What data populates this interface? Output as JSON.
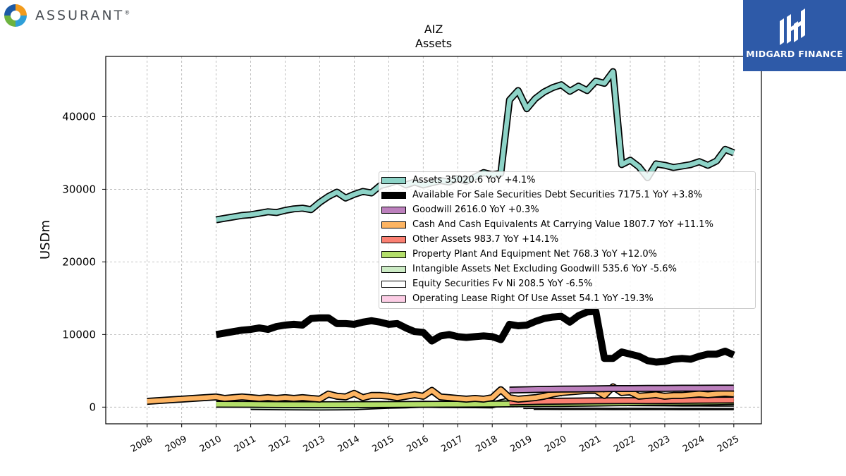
{
  "branding": {
    "company_name": "ASSURANT",
    "company_mark": "®",
    "publisher_name": "MIDGARD FINANCE",
    "publisher_color": "#2e5aa8"
  },
  "chart_data": {
    "type": "area",
    "title": "AIZ",
    "subtitle": "Assets",
    "ylabel": "USDm",
    "xlabel": "",
    "ylim": [
      -2300,
      48300
    ],
    "xlim": [
      2006.8,
      2025.8
    ],
    "x_ticks": [
      "2008",
      "2009",
      "2010",
      "2011",
      "2012",
      "2013",
      "2014",
      "2015",
      "2016",
      "2017",
      "2018",
      "2019",
      "2020",
      "2021",
      "2022",
      "2023",
      "2024",
      "2025"
    ],
    "y_ticks": [
      0,
      10000,
      20000,
      30000,
      40000
    ],
    "grid": true,
    "legend_position": "center-right",
    "series": [
      {
        "name": "Assets",
        "legend_label": "Assets  35020.6 YoY +4.1%",
        "color": "#8dd3c7",
        "x": [
          2010,
          2010.25,
          2010.5,
          2010.75,
          2011,
          2011.25,
          2011.5,
          2011.75,
          2012,
          2012.25,
          2012.5,
          2012.75,
          2013,
          2013.25,
          2013.5,
          2013.75,
          2014,
          2014.25,
          2014.5,
          2014.75,
          2015,
          2015.25,
          2015.5,
          2015.75,
          2016,
          2016.25,
          2016.5,
          2016.75,
          2017,
          2017.25,
          2017.5,
          2017.75,
          2018,
          2018.25,
          2018.5,
          2018.75,
          2019,
          2019.25,
          2019.5,
          2019.75,
          2020,
          2020.25,
          2020.5,
          2020.75,
          2021,
          2021.25,
          2021.5,
          2021.75,
          2022,
          2022.25,
          2022.5,
          2022.75,
          2023,
          2023.25,
          2023.5,
          2023.75,
          2024,
          2024.25,
          2024.5,
          2024.75,
          2025
        ],
        "values": [
          25800,
          26000,
          26200,
          26400,
          26500,
          26700,
          26900,
          26800,
          27100,
          27300,
          27400,
          27200,
          28200,
          29000,
          29600,
          28800,
          29300,
          29700,
          29500,
          30500,
          30800,
          31200,
          30600,
          31000,
          30600,
          30900,
          31200,
          31000,
          31500,
          31100,
          31700,
          32300,
          32000,
          32200,
          42300,
          43600,
          41100,
          42500,
          43400,
          44000,
          44400,
          43500,
          44200,
          43600,
          44900,
          44600,
          46200,
          33400,
          34000,
          33100,
          31600,
          33500,
          33300,
          33000,
          33200,
          33400,
          33800,
          33300,
          33900,
          35500,
          35020.6
        ]
      },
      {
        "name": "Available For Sale Securities Debt Securities",
        "legend_label": "Available For Sale Securities Debt Securities  7175.1 YoY +3.8%",
        "color": "#000000",
        "x": [
          2010,
          2010.25,
          2010.5,
          2010.75,
          2011,
          2011.25,
          2011.5,
          2011.75,
          2012,
          2012.25,
          2012.5,
          2012.75,
          2013,
          2013.25,
          2013.5,
          2013.75,
          2014,
          2014.25,
          2014.5,
          2014.75,
          2015,
          2015.25,
          2015.5,
          2015.75,
          2016,
          2016.25,
          2016.5,
          2016.75,
          2017,
          2017.25,
          2017.5,
          2017.75,
          2018,
          2018.25,
          2018.5,
          2018.75,
          2019,
          2019.25,
          2019.5,
          2019.75,
          2020,
          2020.25,
          2020.5,
          2020.75,
          2021,
          2021.25,
          2021.5,
          2021.75,
          2022,
          2022.25,
          2022.5,
          2022.75,
          2023,
          2023.25,
          2023.5,
          2023.75,
          2024,
          2024.25,
          2024.5,
          2024.75,
          2025
        ],
        "values": [
          10000,
          10200,
          10400,
          10600,
          10700,
          10900,
          10700,
          11100,
          11300,
          11400,
          11300,
          12200,
          12300,
          12300,
          11500,
          11500,
          11400,
          11700,
          11900,
          11700,
          11400,
          11500,
          10900,
          10400,
          10300,
          9100,
          9800,
          10000,
          9700,
          9600,
          9700,
          9800,
          9700,
          9300,
          11400,
          11200,
          11300,
          11800,
          12200,
          12400,
          12500,
          11700,
          12600,
          13100,
          13200,
          6700,
          6700,
          7600,
          7300,
          7000,
          6400,
          6200,
          6300,
          6600,
          6700,
          6600,
          7000,
          7300,
          7300,
          7700,
          7175.1
        ]
      },
      {
        "name": "Goodwill",
        "legend_label": "Goodwill  2616.0 YoY +0.3%",
        "color": "#bc80bd",
        "x": [
          2018.5,
          2019,
          2019.5,
          2020,
          2020.5,
          2021,
          2021.5,
          2022,
          2022.5,
          2023,
          2023.5,
          2024,
          2024.5,
          2025
        ],
        "values": [
          2350,
          2400,
          2450,
          2480,
          2500,
          2520,
          2560,
          2560,
          2580,
          2590,
          2600,
          2605,
          2610,
          2616.0
        ]
      },
      {
        "name": "Cash And Cash Equivalents At Carrying Value",
        "legend_label": "Cash And Cash Equivalents At Carrying Value  1807.7 YoY +11.1%",
        "color": "#fdb462",
        "x": [
          2008,
          2009,
          2010,
          2010.25,
          2010.5,
          2010.75,
          2011,
          2011.25,
          2011.5,
          2011.75,
          2012,
          2012.25,
          2012.5,
          2012.75,
          2013,
          2013.25,
          2013.5,
          2013.75,
          2014,
          2014.25,
          2014.5,
          2014.75,
          2015,
          2015.25,
          2015.5,
          2015.75,
          2016,
          2016.25,
          2016.5,
          2016.75,
          2017,
          2017.25,
          2017.5,
          2017.75,
          2018,
          2018.25,
          2018.5,
          2018.75,
          2019,
          2019.25,
          2019.5,
          2019.75,
          2020,
          2020.25,
          2020.5,
          2020.75,
          2021,
          2021.25,
          2021.5,
          2021.75,
          2022,
          2022.25,
          2022.5,
          2022.75,
          2023,
          2023.25,
          2023.5,
          2023.75,
          2024,
          2024.25,
          2024.5,
          2024.75,
          2025
        ],
        "values": [
          800,
          1100,
          1400,
          1200,
          1300,
          1400,
          1300,
          1200,
          1300,
          1200,
          1300,
          1200,
          1300,
          1200,
          1100,
          1800,
          1500,
          1400,
          1900,
          1300,
          1600,
          1600,
          1500,
          1300,
          1500,
          1700,
          1500,
          2300,
          1400,
          1300,
          1200,
          1100,
          1200,
          1100,
          1300,
          2400,
          1300,
          1100,
          1200,
          1300,
          1500,
          1800,
          2000,
          2100,
          2200,
          2300,
          2300,
          1600,
          2800,
          2000,
          2100,
          1500,
          1600,
          1700,
          1500,
          1600,
          1600,
          1700,
          1800,
          1700,
          1800,
          1900,
          1807.7
        ]
      },
      {
        "name": "Other Assets",
        "legend_label": "Other Assets  983.7 YoY +14.1%",
        "color": "#fb8072",
        "x": [
          2018.5,
          2019,
          2019.5,
          2020,
          2020.5,
          2021,
          2021.5,
          2022,
          2022.5,
          2023,
          2023.5,
          2024,
          2024.5,
          2025
        ],
        "values": [
          700,
          750,
          800,
          820,
          850,
          870,
          880,
          900,
          880,
          900,
          920,
          950,
          960,
          983.7
        ]
      },
      {
        "name": "Property Plant And Equipment Net",
        "legend_label": "Property Plant And Equipment Net  768.3 YoY +12.0%",
        "color": "#b3de69",
        "x": [
          2010,
          2011,
          2011.5,
          2012,
          2013,
          2014,
          2015,
          2016,
          2017,
          2018,
          2018.5,
          2019,
          2019.5,
          2020,
          2020.5,
          2021,
          2021.5,
          2022,
          2022.5,
          2023,
          2023.5,
          2024,
          2024.5,
          2025
        ],
        "values": [
          400,
          380,
          360,
          340,
          330,
          350,
          360,
          380,
          400,
          420,
          450,
          470,
          490,
          510,
          530,
          560,
          590,
          620,
          650,
          670,
          690,
          700,
          720,
          768.3
        ]
      },
      {
        "name": "Intangible Assets Net Excluding Goodwill",
        "legend_label": "Intangible Assets Net Excluding Goodwill  535.6 YoY -5.6%",
        "color": "#ccebc5",
        "x": [
          2011,
          2011.5,
          2012,
          2012.5,
          2013,
          2013.5,
          2014,
          2014.5,
          2015,
          2015.5,
          2016,
          2016.5,
          2017,
          2017.5,
          2018,
          2018.5,
          2019,
          2019.5,
          2020,
          2020.5,
          2021,
          2021.5,
          2022,
          2022.5,
          2023,
          2023.5,
          2024,
          2024.5,
          2025
        ],
        "values": [
          80,
          60,
          30,
          20,
          10,
          20,
          40,
          150,
          250,
          300,
          400,
          350,
          330,
          320,
          300,
          900,
          850,
          800,
          750,
          700,
          650,
          620,
          600,
          580,
          570,
          560,
          560,
          550,
          535.6
        ]
      },
      {
        "name": "Equity Securities Fv Ni",
        "legend_label": "Equity Securities Fv Ni  208.5 YoY -6.5%",
        "color": "#ffffff",
        "x": [
          2018.9,
          2019.5,
          2020,
          2020.5,
          2021,
          2021.5,
          2022,
          2022.5,
          2023,
          2023.5,
          2024,
          2024.5,
          2025
        ],
        "values": [
          220,
          230,
          240,
          250,
          240,
          230,
          235,
          225,
          220,
          215,
          212,
          210,
          208.5
        ]
      },
      {
        "name": "Operating Lease Right Of Use Asset",
        "legend_label": "Operating Lease Right Of Use Asset  54.1 YoY -19.3%",
        "color": "#fccde5",
        "x": [
          2019.2,
          2019.5,
          2020,
          2020.5,
          2021,
          2021.5,
          2022,
          2022.5,
          2023,
          2023.5,
          2024,
          2024.5,
          2025
        ],
        "values": [
          90,
          85,
          80,
          78,
          75,
          72,
          70,
          68,
          65,
          62,
          60,
          57,
          54.1
        ]
      }
    ]
  }
}
